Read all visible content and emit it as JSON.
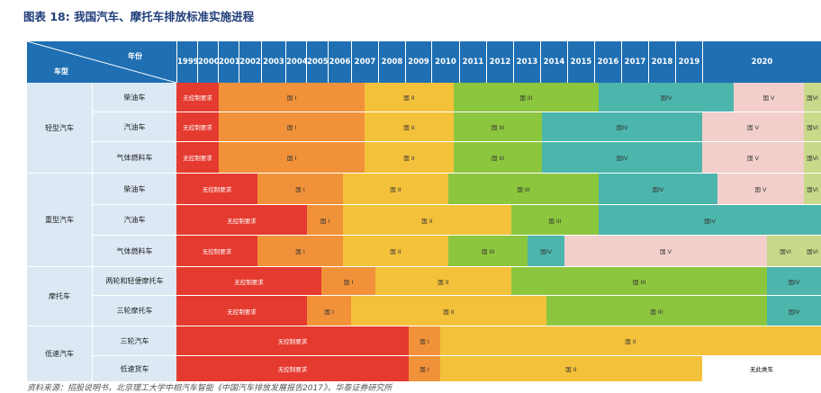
{
  "title": "图表 18: 我国汽车、摩托车排放标准实施进程",
  "header": {
    "corner_year": "年份",
    "corner_type": "车型",
    "years": [
      "1999",
      "2000",
      "2001",
      "2002",
      "2003",
      "2004",
      "2005",
      "2006",
      "2007",
      "2008",
      "2009",
      "2010",
      "2011",
      "2012",
      "2013",
      "2014",
      "2015",
      "2016",
      "2017",
      "2018",
      "2019",
      "2020"
    ]
  },
  "categories": [
    {
      "name": "轻型汽车",
      "subs": [
        "柴油车",
        "汽油车",
        "气体燃料车"
      ]
    },
    {
      "name": "重型汽车",
      "subs": [
        "柴油车",
        "汽油车",
        "气体燃料车"
      ]
    },
    {
      "name": "摩托车",
      "subs": [
        "两轮和轻便摩托车",
        "三轮摩托车"
      ]
    },
    {
      "name": "低速汽车",
      "subs": [
        "三轮汽车",
        "低速货车"
      ]
    }
  ],
  "colors": {
    "red": "#e53a2f",
    "orange": "#f1923a",
    "yellow": "#f4c13b",
    "green": "#8cc63e",
    "teal": "#4cb6ac",
    "pink": "#f2cfcb",
    "lime": "#c9d98a",
    "white": "#ffffff"
  },
  "rows": [
    [
      {
        "label": "无控制要求",
        "c": "red"
      },
      {
        "label": "国 I",
        "c": "orange"
      },
      {
        "label": "国 II",
        "c": "yellow"
      },
      {
        "label": "国 III",
        "c": "green"
      },
      {
        "label": "国IV",
        "c": "teal"
      },
      {
        "label": "国 V",
        "c": "pink"
      },
      {
        "label": "国VI",
        "c": "lime"
      }
    ],
    [
      {
        "label": "无控制要求",
        "c": "red"
      },
      {
        "label": "国 I",
        "c": "orange"
      },
      {
        "label": "国 II",
        "c": "yellow"
      },
      {
        "label": "国 III",
        "c": "green"
      },
      {
        "label": "国IV",
        "c": "teal"
      },
      {
        "label": "国 V",
        "c": "pink"
      },
      {
        "label": "国VI",
        "c": "lime"
      }
    ],
    [
      {
        "label": "无控制要求",
        "c": "red"
      },
      {
        "label": "国 I",
        "c": "orange"
      },
      {
        "label": "国 II",
        "c": "yellow"
      },
      {
        "label": "国 III",
        "c": "green"
      },
      {
        "label": "国IV",
        "c": "teal"
      },
      {
        "label": "国 V",
        "c": "pink"
      },
      {
        "label": "国VI",
        "c": "lime"
      }
    ],
    [
      {
        "label": "无控制要求",
        "c": "red"
      },
      {
        "label": "国 I",
        "c": "orange"
      },
      {
        "label": "国 II",
        "c": "yellow"
      },
      {
        "label": "国 III",
        "c": "green"
      },
      {
        "label": "国IV",
        "c": "teal"
      },
      {
        "label": "国 V",
        "c": "pink"
      },
      {
        "label": "国VI",
        "c": "lime"
      }
    ],
    [
      {
        "label": "无控制要求",
        "c": "red"
      },
      {
        "label": "国 I",
        "c": "orange"
      },
      {
        "label": "国 II",
        "c": "yellow"
      },
      {
        "label": "国 III",
        "c": "green"
      },
      {
        "label": "国IV",
        "c": "teal"
      }
    ],
    [
      {
        "label": "无控制要求",
        "c": "red"
      },
      {
        "label": "国 I",
        "c": "orange"
      },
      {
        "label": "国 II",
        "c": "yellow"
      },
      {
        "label": "国 III",
        "c": "green"
      },
      {
        "label": "国IV",
        "c": "teal"
      },
      {
        "label": "国 V",
        "c": "pink"
      },
      {
        "label": "国VI",
        "c": "lime"
      },
      {
        "label": "国VI",
        "c": "lime"
      }
    ],
    [
      {
        "label": "无控制要求",
        "c": "red"
      },
      {
        "label": "国 I",
        "c": "orange"
      },
      {
        "label": "国 II",
        "c": "yellow"
      },
      {
        "label": "国 III",
        "c": "green"
      },
      {
        "label": "国IV",
        "c": "teal"
      }
    ],
    [
      {
        "label": "无控制要求",
        "c": "red"
      },
      {
        "label": "国 I",
        "c": "orange"
      },
      {
        "label": "国 II",
        "c": "yellow"
      },
      {
        "label": "国 III",
        "c": "green"
      },
      {
        "label": "国IV",
        "c": "teal"
      }
    ],
    [
      {
        "label": "无控制要求",
        "c": "red"
      },
      {
        "label": "国 I",
        "c": "orange"
      },
      {
        "label": "国 II",
        "c": "yellow"
      }
    ],
    [
      {
        "label": "无控制要求",
        "c": "red"
      },
      {
        "label": "国 I",
        "c": "orange"
      },
      {
        "label": "国 II",
        "c": "yellow"
      },
      {
        "label": "无此类车",
        "c": "white"
      }
    ]
  ],
  "source": "资料来源：招股说明书，北京理工大学中相汽车智能《中国汽车排放发展报告2017》，华泰证券研究所"
}
